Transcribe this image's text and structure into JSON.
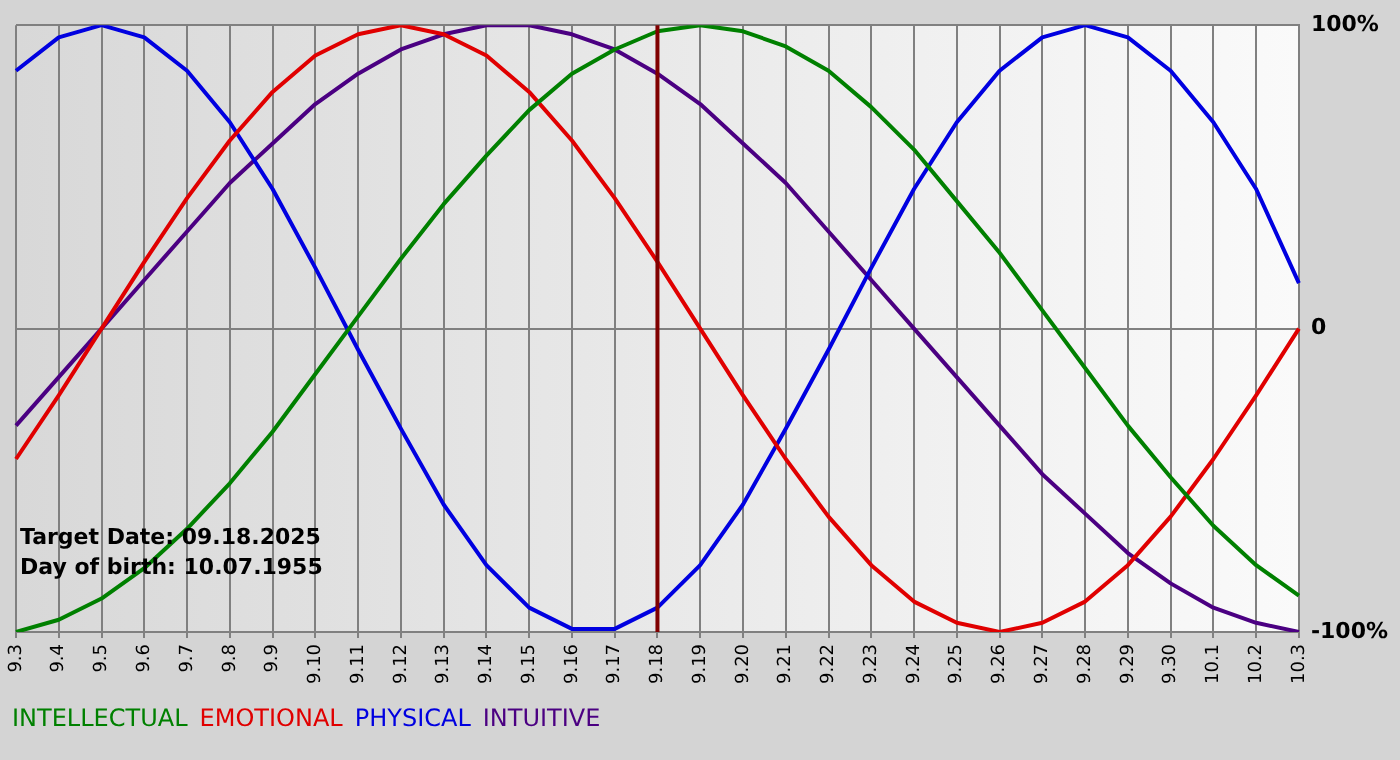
{
  "chart_data": {
    "type": "line",
    "categories": [
      "9.3",
      "9.4",
      "9.5",
      "9.6",
      "9.7",
      "9.8",
      "9.9",
      "9.10",
      "9.11",
      "9.12",
      "9.13",
      "9.14",
      "9.15",
      "9.16",
      "9.17",
      "9.18",
      "9.19",
      "9.20",
      "9.21",
      "9.22",
      "9.23",
      "9.24",
      "9.25",
      "9.26",
      "9.27",
      "9.28",
      "9.29",
      "9.30",
      "10.1",
      "10.2",
      "10.3"
    ],
    "series": [
      {
        "name": "INTELLECTUAL",
        "color": "#008000",
        "values": [
          -100,
          -96,
          -89,
          -79,
          -66,
          -51,
          -34,
          -15,
          4,
          23,
          41,
          57,
          72,
          84,
          92,
          98,
          100,
          98,
          93,
          85,
          73,
          59,
          42,
          25,
          6,
          -13,
          -32,
          -49,
          -65,
          -78,
          -88
        ]
      },
      {
        "name": "EMOTIONAL",
        "color": "#e00000",
        "values": [
          -43,
          -22,
          0,
          22,
          43,
          62,
          78,
          90,
          97,
          100,
          97,
          90,
          78,
          62,
          43,
          22,
          0,
          -22,
          -43,
          -62,
          -78,
          -90,
          -97,
          -100,
          -97,
          -90,
          -78,
          -62,
          -43,
          -22,
          0
        ]
      },
      {
        "name": "PHYSICAL",
        "color": "#0000e0",
        "values": [
          85,
          96,
          100,
          96,
          85,
          68,
          46,
          20,
          -7,
          -33,
          -58,
          -78,
          -92,
          -99,
          -99,
          -92,
          -78,
          -58,
          -33,
          -7,
          20,
          46,
          68,
          85,
          96,
          100,
          96,
          85,
          68,
          46,
          15
        ]
      },
      {
        "name": "INTUITIVE",
        "color": "#4b0082",
        "values": [
          -32,
          -16,
          0,
          16,
          32,
          48,
          61,
          74,
          84,
          92,
          97,
          100,
          100,
          97,
          92,
          84,
          74,
          61,
          48,
          32,
          16,
          0,
          -16,
          -32,
          -48,
          -61,
          -74,
          -84,
          -92,
          -97,
          -100
        ]
      }
    ],
    "ylim": [
      -100,
      100
    ],
    "yticks": [
      {
        "value": 100,
        "label": "100%"
      },
      0,
      {
        "value": -100,
        "label": "-100%"
      }
    ],
    "ref_lines": [
      {
        "axis": "x",
        "value": "9.18",
        "color": "#800000"
      }
    ],
    "annotations": [
      "Target Date: 09.18.2025",
      "Day of birth: 10.07.1955"
    ],
    "grid": true,
    "legend": "bottom",
    "marker": "none",
    "line_style": "solid"
  }
}
